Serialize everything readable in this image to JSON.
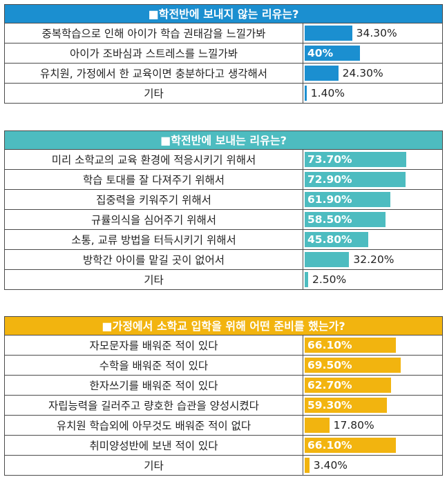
{
  "chart_data": [
    {
      "type": "bar",
      "title": "■학전반에 보내지 않는 리유는?",
      "color": "#1b8fd0",
      "categories": [
        "중복학습으로 인해 아이가 학습 권태감을 느낄가봐",
        "아이가 조바심과 스트레스를 느낄가봐",
        "유치원, 가정에서 한 교육이면 충분하다고 생각해서",
        "기타"
      ],
      "values": [
        34.3,
        40,
        24.3,
        1.4
      ],
      "value_labels": [
        "34.30%",
        "40%",
        "24.30%",
        "1.40%"
      ],
      "xlim": [
        0,
        100
      ]
    },
    {
      "type": "bar",
      "title": "■학전반에 보내는 리유는?",
      "color": "#4dbcc0",
      "categories": [
        "미리 소학교의 교육 환경에 적응시키기 위해서",
        "학습 토대를 잘 다져주기 위해서",
        "집중력을 키워주기 위해서",
        "규률의식을 심어주기 위해서",
        "소통, 교류 방법을 터득시키기 위해서",
        "방학간 아이를 맡길 곳이 없어서",
        "기타"
      ],
      "values": [
        73.7,
        72.9,
        61.9,
        58.5,
        45.8,
        32.2,
        2.5
      ],
      "value_labels": [
        "73.70%",
        "72.90%",
        "61.90%",
        "58.50%",
        "45.80%",
        "32.20%",
        "2.50%"
      ],
      "xlim": [
        0,
        100
      ]
    },
    {
      "type": "bar",
      "title": "■가정에서 소학교 입학을 위해 어떤 준비를 했는가?",
      "color": "#f2b40f",
      "categories": [
        "자모문자를 배워준 적이 있다",
        "수학을 배워준 적이 있다",
        "한자쓰기를 배워준 적이 있다",
        "자립능력을 길러주고 량호한 습관을 양성시켰다",
        "유치원 학습외에 아무것도 배워준 적이 없다",
        "취미양성반에 보낸 적이 있다",
        "기타"
      ],
      "values": [
        66.1,
        69.5,
        62.7,
        59.3,
        17.8,
        66.1,
        3.4
      ],
      "value_labels": [
        "66.10%",
        "69.50%",
        "62.70%",
        "59.30%",
        "17.80%",
        "66.10%",
        "3.40%"
      ],
      "xlim": [
        0,
        100
      ]
    }
  ]
}
